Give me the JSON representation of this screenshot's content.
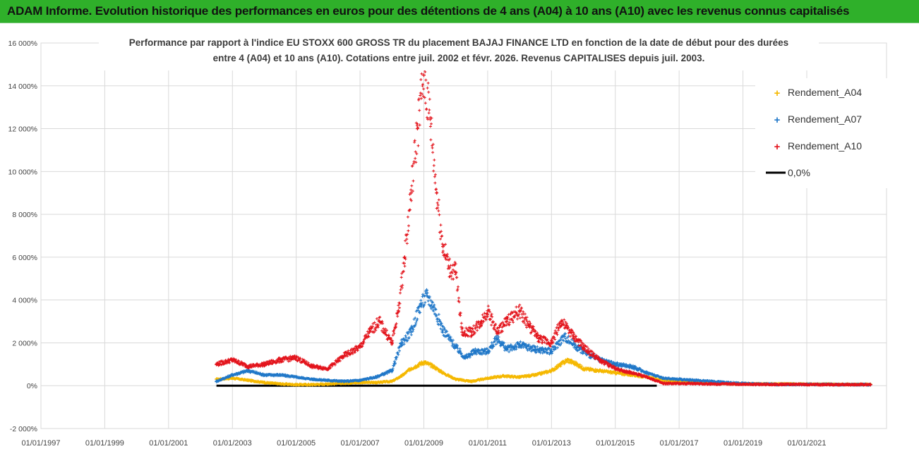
{
  "banner": {
    "title": "ADAM Informe. Evolution historique des performances en euros pour des détentions de 4 ans (A04) à 10 ans (A10) avec les revenus connus capitalisés"
  },
  "colors": {
    "banner": "#2fb02a",
    "a04": "#f5b800",
    "a07": "#1f77c8",
    "a10": "#e3131b",
    "zero": "#000000",
    "grid": "#d9d9d9"
  },
  "chart_data": {
    "type": "scatter",
    "title_lines": [
      "Performance par rapport à l'indice EU STOXX 600 GROSS TR  du placement BAJAJ FINANCE LTD en fonction de la date de début pour des durées",
      "entre 4 (A04) et 10 ans (A10).  Cotations entre juil. 2002 et févr. 2026. Revenus CAPITALISES depuis juil. 2003."
    ],
    "ylim": [
      -2000,
      16000
    ],
    "y_ticks": [
      16000,
      14000,
      12000,
      10000,
      8000,
      6000,
      4000,
      2000,
      0,
      -2000
    ],
    "y_tick_labels": [
      "16 000%",
      "14 000%",
      "12 000%",
      "10 000%",
      "8 000%",
      "6 000%",
      "4 000%",
      "2 000%",
      "0%",
      "-2 000%"
    ],
    "xlim": [
      1997.0,
      2023.5
    ],
    "x_ticks": [
      1997,
      1999,
      2001,
      2003,
      2005,
      2007,
      2009,
      2011,
      2013,
      2015,
      2017,
      2019,
      2021
    ],
    "x_tick_labels": [
      "01/01/1997",
      "01/01/1999",
      "01/01/2001",
      "01/01/2003",
      "01/01/2005",
      "01/01/2007",
      "01/01/2009",
      "01/01/2011",
      "01/01/2013",
      "01/01/2015",
      "01/01/2017",
      "01/01/2019",
      "01/01/2021"
    ],
    "legend_position": "top-right",
    "legend": [
      "Rendement_A04",
      "Rendement_A07",
      "Rendement_A10",
      "0,0%"
    ],
    "series": [
      {
        "name": "Rendement_A04",
        "color": "#f5b800",
        "points": [
          [
            2002.5,
            300
          ],
          [
            2003.0,
            350
          ],
          [
            2003.5,
            250
          ],
          [
            2004.0,
            150
          ],
          [
            2004.5,
            80
          ],
          [
            2005.0,
            50
          ],
          [
            2005.5,
            50
          ],
          [
            2006.0,
            80
          ],
          [
            2006.5,
            120
          ],
          [
            2007.0,
            150
          ],
          [
            2007.5,
            150
          ],
          [
            2008.0,
            200
          ],
          [
            2008.3,
            450
          ],
          [
            2008.6,
            800
          ],
          [
            2009.0,
            1100
          ],
          [
            2009.3,
            900
          ],
          [
            2009.6,
            600
          ],
          [
            2010.0,
            300
          ],
          [
            2010.5,
            200
          ],
          [
            2011.0,
            350
          ],
          [
            2011.5,
            450
          ],
          [
            2012.0,
            400
          ],
          [
            2012.5,
            500
          ],
          [
            2013.0,
            700
          ],
          [
            2013.5,
            1200
          ],
          [
            2013.8,
            1000
          ],
          [
            2014.0,
            800
          ],
          [
            2014.5,
            700
          ],
          [
            2015.0,
            600
          ],
          [
            2015.5,
            500
          ],
          [
            2016.0,
            400
          ],
          [
            2016.5,
            250
          ],
          [
            2017.0,
            200
          ],
          [
            2017.5,
            150
          ],
          [
            2018.0,
            120
          ],
          [
            2018.5,
            100
          ],
          [
            2019.0,
            90
          ],
          [
            2019.5,
            80
          ],
          [
            2020.0,
            80
          ],
          [
            2020.5,
            80
          ],
          [
            2021.0,
            70
          ],
          [
            2021.5,
            70
          ],
          [
            2022.0,
            60
          ],
          [
            2022.5,
            60
          ],
          [
            2023.0,
            60
          ]
        ]
      },
      {
        "name": "Rendement_A07",
        "color": "#1f77c8",
        "points": [
          [
            2002.5,
            200
          ],
          [
            2003.0,
            500
          ],
          [
            2003.5,
            700
          ],
          [
            2004.0,
            500
          ],
          [
            2004.5,
            500
          ],
          [
            2005.0,
            400
          ],
          [
            2005.5,
            300
          ],
          [
            2006.0,
            250
          ],
          [
            2006.5,
            200
          ],
          [
            2007.0,
            250
          ],
          [
            2007.5,
            400
          ],
          [
            2008.0,
            700
          ],
          [
            2008.3,
            2000
          ],
          [
            2008.6,
            2500
          ],
          [
            2008.9,
            3800
          ],
          [
            2009.1,
            4200
          ],
          [
            2009.3,
            3700
          ],
          [
            2009.6,
            2600
          ],
          [
            2010.0,
            1800
          ],
          [
            2010.3,
            1300
          ],
          [
            2010.6,
            1600
          ],
          [
            2011.0,
            1600
          ],
          [
            2011.3,
            2200
          ],
          [
            2011.6,
            1700
          ],
          [
            2012.0,
            1900
          ],
          [
            2012.5,
            1700
          ],
          [
            2013.0,
            1600
          ],
          [
            2013.4,
            2300
          ],
          [
            2013.8,
            1800
          ],
          [
            2014.0,
            1600
          ],
          [
            2014.5,
            1200
          ],
          [
            2015.0,
            1000
          ],
          [
            2015.5,
            900
          ],
          [
            2016.0,
            600
          ],
          [
            2016.5,
            350
          ],
          [
            2017.0,
            300
          ],
          [
            2017.5,
            250
          ],
          [
            2018.0,
            200
          ],
          [
            2018.5,
            150
          ],
          [
            2019.0,
            100
          ],
          [
            2019.5,
            80
          ],
          [
            2020.0,
            60
          ],
          [
            2020.5,
            60
          ],
          [
            2021.0,
            60
          ],
          [
            2021.5,
            60
          ],
          [
            2022.0,
            50
          ],
          [
            2022.5,
            50
          ],
          [
            2023.0,
            50
          ]
        ]
      },
      {
        "name": "Rendement_A10",
        "color": "#e3131b",
        "points": [
          [
            2002.5,
            1000
          ],
          [
            2003.0,
            1200
          ],
          [
            2003.5,
            900
          ],
          [
            2004.0,
            1000
          ],
          [
            2004.5,
            1200
          ],
          [
            2005.0,
            1300
          ],
          [
            2005.5,
            900
          ],
          [
            2006.0,
            800
          ],
          [
            2006.5,
            1400
          ],
          [
            2007.0,
            1800
          ],
          [
            2007.3,
            2500
          ],
          [
            2007.6,
            3000
          ],
          [
            2008.0,
            2000
          ],
          [
            2008.2,
            3500
          ],
          [
            2008.4,
            6000
          ],
          [
            2008.6,
            9000
          ],
          [
            2008.8,
            12000
          ],
          [
            2009.0,
            14500
          ],
          [
            2009.2,
            12500
          ],
          [
            2009.4,
            9000
          ],
          [
            2009.6,
            6500
          ],
          [
            2009.8,
            5500
          ],
          [
            2010.0,
            5300
          ],
          [
            2010.2,
            2500
          ],
          [
            2010.5,
            2500
          ],
          [
            2010.8,
            3000
          ],
          [
            2011.0,
            3500
          ],
          [
            2011.3,
            2500
          ],
          [
            2011.6,
            3000
          ],
          [
            2012.0,
            3500
          ],
          [
            2012.3,
            2800
          ],
          [
            2012.6,
            2200
          ],
          [
            2013.0,
            2000
          ],
          [
            2013.3,
            3000
          ],
          [
            2013.7,
            2300
          ],
          [
            2014.0,
            1800
          ],
          [
            2014.5,
            1200
          ],
          [
            2015.0,
            800
          ],
          [
            2015.5,
            600
          ],
          [
            2016.0,
            400
          ],
          [
            2016.5,
            100
          ],
          [
            2017.0,
            100
          ],
          [
            2017.5,
            100
          ],
          [
            2018.0,
            80
          ],
          [
            2018.5,
            80
          ],
          [
            2019.0,
            70
          ],
          [
            2019.5,
            60
          ],
          [
            2020.0,
            60
          ],
          [
            2020.5,
            60
          ],
          [
            2021.0,
            50
          ],
          [
            2021.5,
            50
          ],
          [
            2022.0,
            50
          ],
          [
            2022.5,
            50
          ],
          [
            2023.0,
            50
          ]
        ]
      },
      {
        "name": "0,0%",
        "color": "#000000",
        "type": "line",
        "points": [
          [
            2002.5,
            0
          ],
          [
            2016.3,
            0
          ]
        ]
      }
    ]
  }
}
